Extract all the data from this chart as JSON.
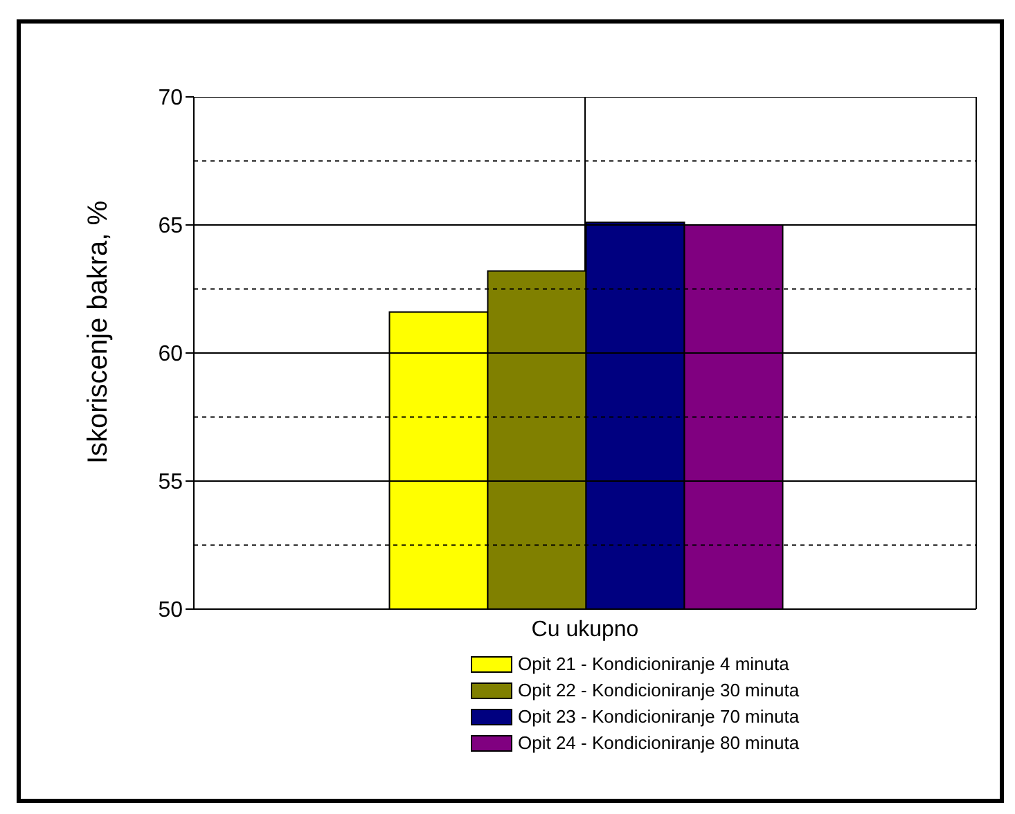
{
  "chart_data": {
    "type": "bar",
    "ylabel": "Iskoriscenje bakra, %",
    "categories": [
      "Cu ukupno"
    ],
    "series": [
      {
        "name": "Opit 21 - Kondicioniranje 4 minuta",
        "color": "#ffff00",
        "values": [
          61.6
        ]
      },
      {
        "name": "Opit 22 - Kondicioniranje 30 minuta",
        "color": "#808000",
        "values": [
          63.2
        ]
      },
      {
        "name": "Opit 23 - Kondicioniranje 70 minuta",
        "color": "#000080",
        "values": [
          65.1
        ]
      },
      {
        "name": "Opit 24 - Kondicioniranje 80 minuta",
        "color": "#800080",
        "values": [
          65.0
        ]
      }
    ],
    "ylim": [
      50,
      70
    ],
    "yticks": [
      50,
      {
        "value": 52.5,
        "label": null
      },
      55,
      {
        "value": 57.5,
        "label": null
      },
      60,
      {
        "value": 62.5,
        "label": null
      },
      65,
      {
        "value": 67.5,
        "label": null
      },
      70
    ],
    "grid": true,
    "legend": "bottom"
  }
}
